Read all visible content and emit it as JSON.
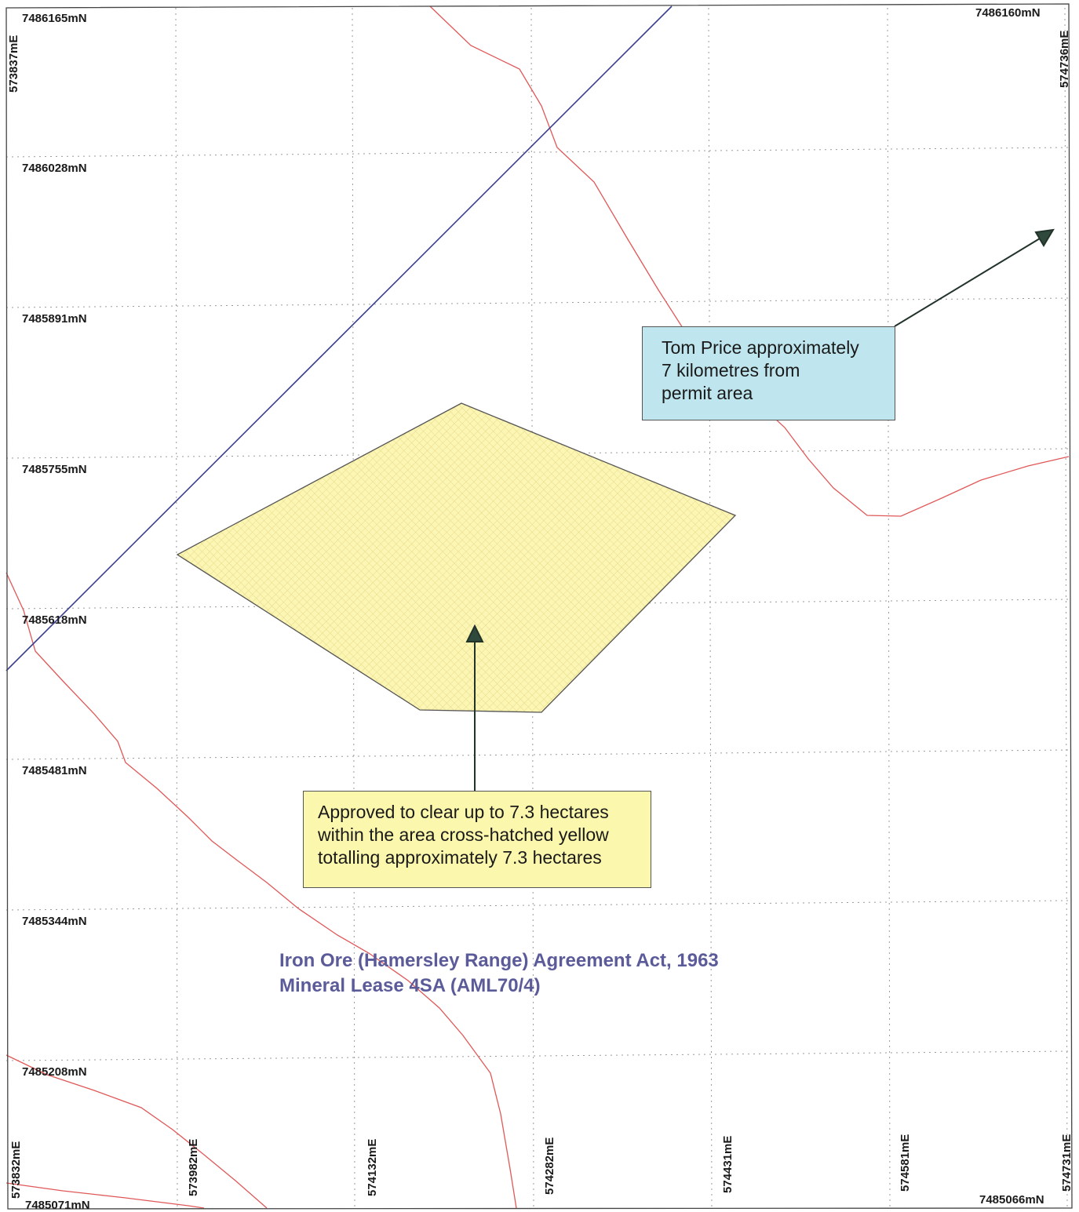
{
  "colors": {
    "background": "#ffffff",
    "grid": "#9a9a9a",
    "frame": "#444444",
    "boundary_line": "#3a3f8f",
    "drainage_line": "#e05858",
    "clearing_fill": "#fbf6b4",
    "clearing_stroke": "#555555",
    "town_callout_fill": "#bfe6ee",
    "clearing_callout_fill": "#fbf7ad",
    "lease_text": "#5b5b9a"
  },
  "corner_labels": {
    "top_left_northing": "7486165mN",
    "top_left_easting": "573837mE",
    "top_right_northing": "7486160mN",
    "top_right_easting": "574736mE",
    "bottom_left_northing": "7485071mN",
    "bottom_right_northing": "7485066mN"
  },
  "northing_labels": [
    "7486028mN",
    "7485891mN",
    "7485755mN",
    "7485618mN",
    "7485481mN",
    "7485344mN",
    "7485208mN"
  ],
  "easting_labels": [
    "573832mE",
    "573982mE",
    "574132mE",
    "574282mE",
    "574431mE",
    "574581mE",
    "574731mE"
  ],
  "callouts": {
    "town": {
      "lines": [
        "Tom Price approximately",
        "7 kilometres from",
        "permit area"
      ]
    },
    "clearing": {
      "lines": [
        "Approved to clear up to 7.3 hectares",
        "within the area cross-hatched yellow",
        "totalling approximately 7.3 hectares"
      ]
    }
  },
  "lease_label": {
    "lines": [
      "Iron Ore (Hamersley Range) Agreement Act, 1963",
      "Mineral Lease 4SA (AML70/4)"
    ]
  }
}
